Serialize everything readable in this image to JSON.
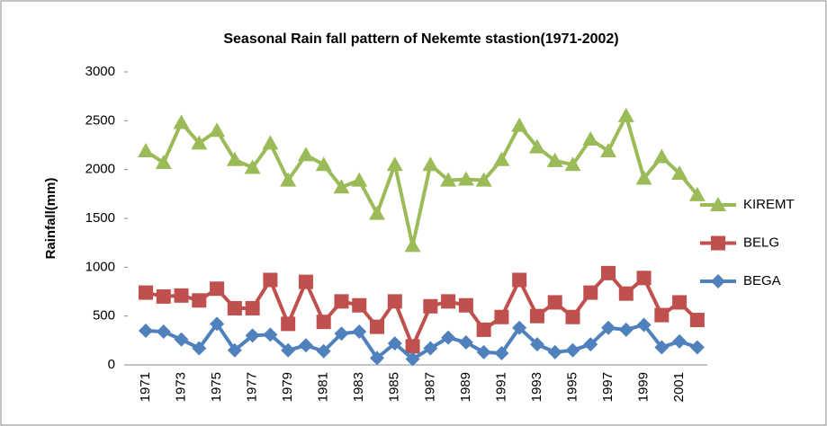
{
  "chart_data": {
    "type": "line",
    "title": "Seasonal Rain fall pattern of  Nekemte stastion(1971-2002)",
    "y_label": "Rainfall(mm)",
    "categories": [
      "1971",
      null,
      "1973",
      null,
      "1975",
      null,
      "1977",
      null,
      "1979",
      null,
      "1981",
      null,
      "1983",
      null,
      "1985",
      null,
      "1987",
      null,
      "1989",
      null,
      "1991",
      null,
      "1993",
      null,
      "1995",
      null,
      "1997",
      null,
      "1999",
      null,
      "2001",
      null
    ],
    "series": [
      {
        "name": "KIREMT",
        "color": "#9bbb59",
        "marker": "triangle",
        "values": [
          2190,
          2070,
          2480,
          2270,
          2400,
          2100,
          2020,
          2270,
          1890,
          2150,
          2050,
          1820,
          1890,
          1550,
          2050,
          1220,
          2050,
          1890,
          1900,
          1890,
          2100,
          2450,
          2230,
          2090,
          2050,
          2310,
          2190,
          2550,
          1910,
          2130,
          1960,
          1740
        ]
      },
      {
        "name": "BELG",
        "color": "#c0504d",
        "marker": "square",
        "values": [
          740,
          700,
          710,
          660,
          780,
          580,
          580,
          870,
          420,
          850,
          440,
          650,
          610,
          390,
          650,
          190,
          600,
          650,
          610,
          360,
          490,
          870,
          500,
          640,
          490,
          740,
          940,
          730,
          890,
          510,
          640,
          460
        ]
      },
      {
        "name": "BEGA",
        "color": "#4f81bd",
        "marker": "diamond",
        "values": [
          350,
          340,
          260,
          170,
          420,
          150,
          300,
          310,
          150,
          200,
          140,
          320,
          340,
          70,
          220,
          60,
          170,
          280,
          230,
          130,
          120,
          380,
          210,
          130,
          150,
          210,
          380,
          360,
          410,
          180,
          240,
          180
        ]
      }
    ],
    "ylim": [
      0,
      3000
    ],
    "yticks": [
      0,
      500,
      1000,
      1500,
      2000,
      2500,
      3000
    ],
    "grid": false,
    "legend": "right"
  }
}
